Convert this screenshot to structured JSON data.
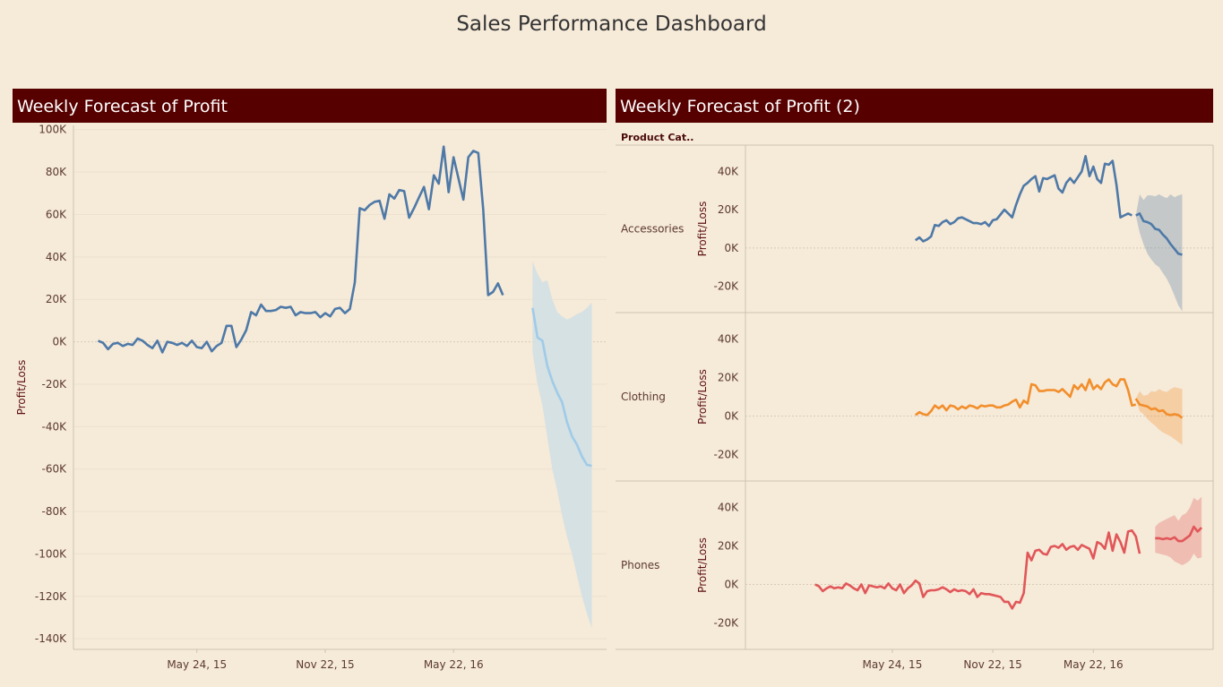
{
  "dashboard": {
    "title": "Sales Performance Dashboard"
  },
  "left_panel": {
    "header": "Weekly Forecast of Profit"
  },
  "right_panel": {
    "header": "Weekly Forecast of Profit (2)",
    "column_header": "Product Cat.."
  },
  "chart_data": [
    {
      "type": "line",
      "title": "Weekly Forecast of Profit",
      "xlabel": "",
      "ylabel": "Profit/Loss",
      "x_axis": "week index (~weekly, tick labels at May 24, 15 / Nov 22, 15 / May 22, 16)",
      "x_ticks": [
        {
          "week": 20,
          "label": "May 24, 15"
        },
        {
          "week": 46,
          "label": "Nov 22, 15"
        },
        {
          "week": 72,
          "label": "May 22, 16"
        }
      ],
      "xlim": [
        -5,
        103
      ],
      "ylim": [
        -145000,
        102000
      ],
      "y_ticks": [
        100000,
        80000,
        60000,
        40000,
        20000,
        0,
        -20000,
        -40000,
        -60000,
        -80000,
        -100000,
        -120000,
        -140000
      ],
      "y_tick_labels": [
        "100K",
        "80K",
        "60K",
        "40K",
        "20K",
        "0K",
        "-20K",
        "-40K",
        "-60K",
        "-80K",
        "-100K",
        "-120K",
        "-140K"
      ],
      "grid": true,
      "series": [
        {
          "role": "actual",
          "color": "#4e79a7",
          "x_start": 0,
          "values": [
            500,
            -500,
            -3500,
            -1000,
            -500,
            -2000,
            -1000,
            -1500,
            1500,
            500,
            -1500,
            -3000,
            500,
            -5000,
            0,
            -500,
            -1500,
            -500,
            -2000,
            500,
            -2500,
            -3000,
            0,
            -4500,
            -2000,
            -500,
            7500,
            7500,
            -2500,
            1000,
            5500,
            14000,
            12500,
            17500,
            14500,
            14500,
            15000,
            16500,
            16000,
            16500,
            12500,
            14000,
            13500,
            13500,
            14000,
            11500,
            13500,
            12000,
            15500,
            16000,
            13500,
            15500,
            28000,
            63000,
            62000,
            64500,
            66000,
            66500,
            58000,
            69500,
            67500,
            71500,
            71000,
            58500,
            63000,
            68000,
            73000,
            62500,
            78500,
            74500,
            92000,
            70500,
            87000,
            77000,
            67000,
            87000,
            90000,
            89000,
            62500,
            22000,
            23500,
            27500,
            22000
          ]
        },
        {
          "role": "forecast",
          "color": "#a0cbe8",
          "x_start": 88,
          "values": [
            16000,
            2000,
            500,
            -11500,
            -18500,
            -24000,
            -28500,
            -38000,
            -44500,
            -48500,
            -54000,
            -58000,
            -58500
          ],
          "band_upper": [
            38000,
            32000,
            28000,
            29000,
            20000,
            14000,
            12000,
            10500,
            11500,
            13000,
            14000,
            16000,
            18500
          ],
          "band_lower": [
            -5000,
            -20000,
            -30000,
            -45000,
            -60000,
            -70000,
            -82000,
            -92000,
            -100000,
            -110000,
            -120000,
            -128000,
            -135000
          ],
          "band_color": "#d5e1e3"
        }
      ]
    },
    {
      "type": "line",
      "title": "Weekly Forecast of Profit (2)",
      "xlabel": "",
      "ylabel": "Profit/Loss",
      "row_dimension": "Product Cat..",
      "x_axis": "week index (~weekly, tick labels at May 24, 15 / Nov 22, 15 / May 22, 16)",
      "x_ticks": [
        {
          "week": 20,
          "label": "May 24, 15"
        },
        {
          "week": 46,
          "label": "Nov 22, 15"
        },
        {
          "week": 72,
          "label": "May 22, 16"
        }
      ],
      "xlim": [
        -18,
        103
      ],
      "y_ticks": [
        40000,
        20000,
        0,
        -20000
      ],
      "y_tick_labels": [
        "40K",
        "20K",
        "0K",
        "-20K"
      ],
      "ylim": [
        -30000,
        50000
      ],
      "grid": true,
      "series": [
        {
          "name": "Accessories",
          "color": "#4e79a7",
          "actual_x_start": 26,
          "actual": [
            4000,
            5500,
            3500,
            4500,
            6000,
            12000,
            11500,
            13500,
            14500,
            12500,
            13500,
            15500,
            16000,
            15000,
            14000,
            13000,
            13000,
            12500,
            13500,
            11500,
            14500,
            15000,
            17500,
            20000,
            18000,
            16000,
            22500,
            28000,
            32500,
            34000,
            36000,
            37500,
            29500,
            36500,
            36000,
            37000,
            38000,
            31000,
            29000,
            34000,
            36500,
            34000,
            37000,
            40000,
            48000,
            37500,
            42500,
            36000,
            34000,
            44000,
            43500,
            45500,
            33000,
            16000,
            17000,
            18000,
            17000
          ],
          "forecast_x_start": 83,
          "forecast": [
            17000,
            18000,
            14000,
            13500,
            12500,
            10000,
            9500,
            7000,
            5000,
            2000,
            -500,
            -3000,
            -3500
          ],
          "band_upper": [
            17000,
            28000,
            25000,
            27500,
            27500,
            27000,
            28000,
            27000,
            26000,
            28000,
            26500,
            27500,
            28000
          ],
          "band_lower": [
            17000,
            8000,
            2000,
            -3000,
            -6000,
            -8500,
            -10000,
            -13000,
            -16000,
            -20000,
            -25000,
            -30000,
            -33000
          ]
        },
        {
          "name": "Clothing",
          "color": "#f28e2b",
          "actual_x_start": 26,
          "actual": [
            500,
            2000,
            1000,
            500,
            2500,
            5500,
            4000,
            5500,
            3000,
            5500,
            5000,
            3500,
            5000,
            4000,
            5500,
            5000,
            4000,
            5500,
            5000,
            5500,
            5500,
            4500,
            4500,
            5500,
            6000,
            7500,
            8500,
            4500,
            8000,
            6500,
            16500,
            16000,
            13000,
            13000,
            13500,
            13500,
            13500,
            12500,
            14000,
            12000,
            10000,
            16000,
            14000,
            16500,
            13500,
            19000,
            14000,
            16000,
            14000,
            17500,
            19000,
            16500,
            15500,
            19000,
            19000,
            13500,
            5500,
            6000
          ],
          "forecast_x_start": 83,
          "forecast": [
            9000,
            6000,
            5500,
            5000,
            3500,
            4000,
            2500,
            3000,
            1000,
            500,
            1000,
            500,
            -1000
          ],
          "band_upper": [
            9000,
            13000,
            10500,
            11000,
            13000,
            12500,
            14000,
            13000,
            12500,
            14000,
            15000,
            14500,
            14000
          ],
          "band_lower": [
            9000,
            2500,
            1000,
            -1500,
            -3500,
            -5000,
            -7000,
            -8500,
            -9500,
            -10500,
            -12000,
            -13500,
            -15000
          ]
        },
        {
          "name": "Phones",
          "color": "#e15759",
          "actual_x_start": 0,
          "actual": [
            0,
            -1000,
            -3500,
            -2000,
            -1000,
            -2000,
            -1500,
            -2000,
            500,
            -500,
            -2000,
            -3000,
            0,
            -4500,
            -500,
            -1000,
            -1500,
            -1000,
            -2000,
            500,
            -2000,
            -3000,
            0,
            -4500,
            -2000,
            -500,
            2000,
            500,
            -6500,
            -3500,
            -3000,
            -3000,
            -2500,
            -1500,
            -2500,
            -4000,
            -2500,
            -3500,
            -3000,
            -3500,
            -5000,
            -2500,
            -6500,
            -4500,
            -5000,
            -5000,
            -5500,
            -6000,
            -6500,
            -9000,
            -9000,
            -12500,
            -9000,
            -9500,
            -4500,
            16500,
            12500,
            17500,
            18000,
            16000,
            15500,
            19500,
            20000,
            19000,
            21000,
            18000,
            19500,
            20000,
            18000,
            20500,
            19500,
            18500,
            13500,
            22000,
            21000,
            18500,
            27000,
            17500,
            26000,
            22000,
            16500,
            27500,
            28000,
            25000,
            16000
          ],
          "forecast_x_start": 88,
          "forecast": [
            24000,
            24000,
            23500,
            24000,
            23500,
            24500,
            22500,
            22500,
            24000,
            25500,
            30000,
            27500,
            29500
          ],
          "band_upper": [
            30000,
            32000,
            33000,
            34000,
            35000,
            36000,
            33000,
            36000,
            37000,
            40000,
            45000,
            43500,
            45500
          ],
          "band_lower": [
            16500,
            16000,
            15500,
            15000,
            14000,
            12000,
            11000,
            10000,
            11000,
            12500,
            16000,
            13500,
            14000
          ]
        }
      ]
    }
  ]
}
